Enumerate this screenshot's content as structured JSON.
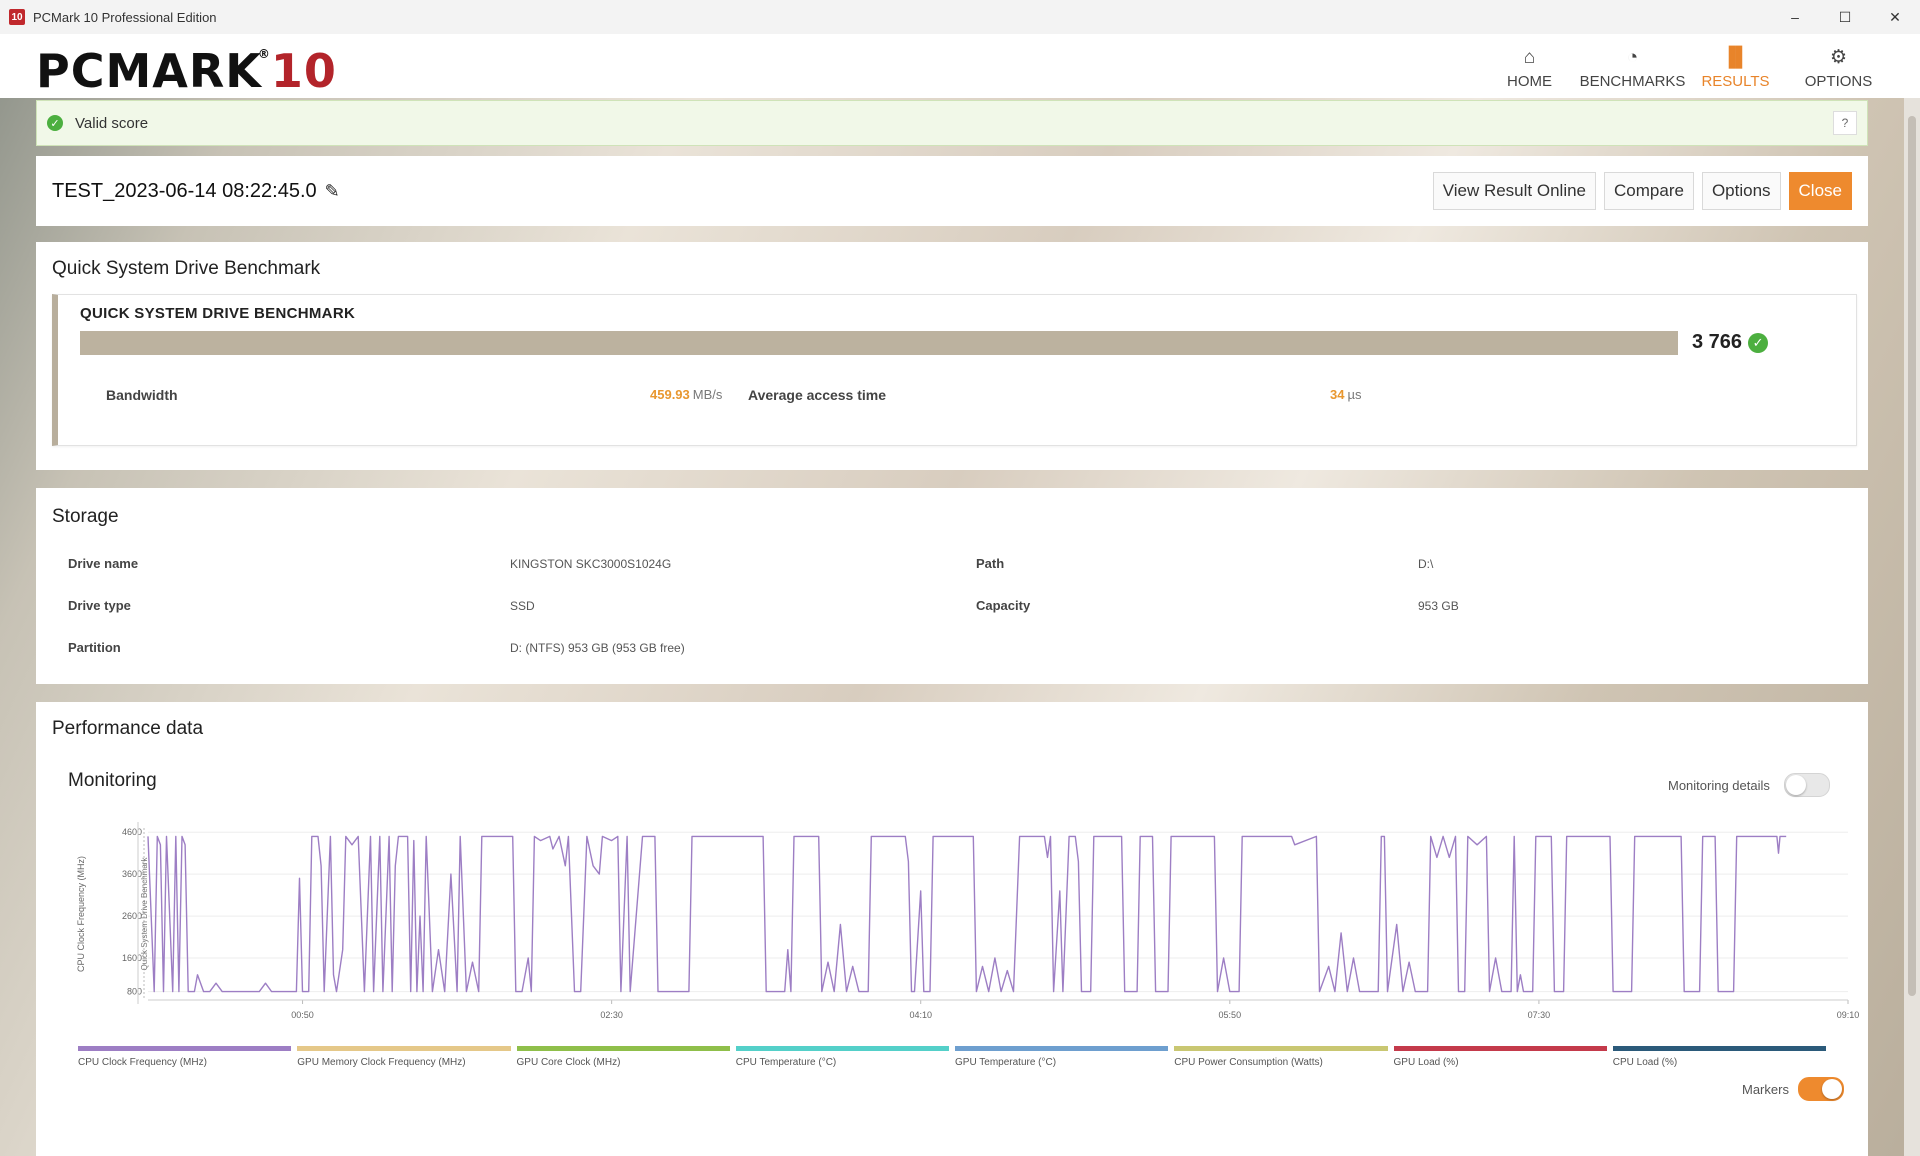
{
  "window": {
    "title": "PCMark 10 Professional Edition",
    "controls": [
      "–",
      "☐",
      "✕"
    ]
  },
  "logo": {
    "main": "PCMARK",
    "num": "10",
    "reg": "®"
  },
  "nav": [
    {
      "label": "HOME",
      "icon": "⌂",
      "icon_name": "home-icon",
      "active": false
    },
    {
      "label": "BENCHMARKS",
      "icon": "◔",
      "icon_name": "gauge-icon",
      "active": false
    },
    {
      "label": "RESULTS",
      "icon": "▐▌",
      "icon_name": "bar-chart-icon",
      "active": true
    },
    {
      "label": "OPTIONS",
      "icon": "⚙",
      "icon_name": "gear-icon",
      "active": false
    }
  ],
  "banner": {
    "text": "Valid score",
    "help": "?"
  },
  "result": {
    "title": "TEST_2023-06-14 08:22:45.0",
    "buttons": {
      "view_online": "View Result Online",
      "compare": "Compare",
      "options": "Options",
      "close": "Close"
    }
  },
  "benchmark": {
    "section_title": "Quick System Drive Benchmark",
    "name": "QUICK SYSTEM DRIVE BENCHMARK",
    "score": "3 766",
    "bandwidth_label": "Bandwidth",
    "bandwidth_value": "459.93",
    "bandwidth_unit": "MB/s",
    "access_label": "Average access time",
    "access_value": "34",
    "access_unit": "µs"
  },
  "storage": {
    "section_title": "Storage",
    "drive_name_label": "Drive name",
    "drive_name": "KINGSTON SKC3000S1024G",
    "path_label": "Path",
    "path": "D:\\",
    "drive_type_label": "Drive type",
    "drive_type": "SSD",
    "capacity_label": "Capacity",
    "capacity": "953 GB",
    "partition_label": "Partition",
    "partition": "D: (NTFS) 953 GB (953 GB free)"
  },
  "performance": {
    "section_title": "Performance data",
    "monitoring_title": "Monitoring",
    "monitoring_details_label": "Monitoring details",
    "monitoring_details_on": false,
    "markers_label": "Markers",
    "markers_on": true
  },
  "legend": [
    {
      "label": "CPU Clock Frequency (MHz)",
      "color": "#9d7ec4"
    },
    {
      "label": "GPU Memory Clock Frequency (MHz)",
      "color": "#e5c889"
    },
    {
      "label": "GPU Core Clock (MHz)",
      "color": "#8fbf4a"
    },
    {
      "label": "CPU Temperature (°C)",
      "color": "#54d0c9"
    },
    {
      "label": "GPU Temperature (°C)",
      "color": "#6e9fcf"
    },
    {
      "label": "CPU Power Consumption (Watts)",
      "color": "#c9c772"
    },
    {
      "label": "GPU Load (%)",
      "color": "#c43a4b"
    },
    {
      "label": "CPU Load (%)",
      "color": "#2b5a7a"
    }
  ],
  "chart_data": {
    "type": "line",
    "ylabel": "CPU Clock Frequency (MHz)",
    "marker_label": "Quick System Drive Benchmark",
    "y_ticks": [
      800,
      1600,
      2600,
      3600,
      4600
    ],
    "ylim": [
      600,
      4700
    ],
    "x_ticks": [
      "00:50",
      "02:30",
      "04:10",
      "05:50",
      "07:30",
      "09:10"
    ],
    "xlim": [
      0,
      550
    ],
    "grid": true,
    "series": [
      {
        "name": "CPU Clock Frequency (MHz)",
        "color": "#9d7ec4",
        "points": [
          [
            0,
            4500
          ],
          [
            2,
            800
          ],
          [
            3,
            4500
          ],
          [
            4,
            4300
          ],
          [
            5,
            800
          ],
          [
            6,
            4500
          ],
          [
            8,
            800
          ],
          [
            9,
            4500
          ],
          [
            10,
            800
          ],
          [
            11,
            4500
          ],
          [
            12,
            4300
          ],
          [
            13,
            800
          ],
          [
            15,
            800
          ],
          [
            16,
            1200
          ],
          [
            18,
            800
          ],
          [
            20,
            800
          ],
          [
            22,
            1000
          ],
          [
            24,
            800
          ],
          [
            30,
            800
          ],
          [
            36,
            800
          ],
          [
            38,
            1000
          ],
          [
            40,
            800
          ],
          [
            45,
            800
          ],
          [
            48,
            800
          ],
          [
            49,
            3500
          ],
          [
            50,
            800
          ],
          [
            52,
            800
          ],
          [
            53,
            4500
          ],
          [
            55,
            4500
          ],
          [
            56,
            3800
          ],
          [
            57,
            800
          ],
          [
            59,
            4500
          ],
          [
            60,
            1200
          ],
          [
            61,
            800
          ],
          [
            63,
            1800
          ],
          [
            64,
            4500
          ],
          [
            66,
            4300
          ],
          [
            68,
            4500
          ],
          [
            70,
            800
          ],
          [
            72,
            4500
          ],
          [
            73,
            800
          ],
          [
            75,
            4500
          ],
          [
            76,
            800
          ],
          [
            78,
            4500
          ],
          [
            79,
            800
          ],
          [
            80,
            3800
          ],
          [
            81,
            4500
          ],
          [
            84,
            4500
          ],
          [
            85,
            800
          ],
          [
            86,
            4400
          ],
          [
            87,
            800
          ],
          [
            88,
            2600
          ],
          [
            89,
            800
          ],
          [
            90,
            4500
          ],
          [
            92,
            800
          ],
          [
            94,
            1800
          ],
          [
            96,
            800
          ],
          [
            98,
            3600
          ],
          [
            100,
            800
          ],
          [
            101,
            4500
          ],
          [
            103,
            800
          ],
          [
            105,
            1500
          ],
          [
            107,
            800
          ],
          [
            108,
            4500
          ],
          [
            118,
            4500
          ],
          [
            119,
            800
          ],
          [
            121,
            800
          ],
          [
            123,
            1600
          ],
          [
            124,
            800
          ],
          [
            125,
            4500
          ],
          [
            127,
            4400
          ],
          [
            130,
            4500
          ],
          [
            131,
            4200
          ],
          [
            133,
            4500
          ],
          [
            135,
            3800
          ],
          [
            136,
            4500
          ],
          [
            138,
            800
          ],
          [
            140,
            800
          ],
          [
            142,
            4500
          ],
          [
            144,
            3800
          ],
          [
            146,
            3600
          ],
          [
            147,
            4500
          ],
          [
            150,
            4400
          ],
          [
            152,
            4500
          ],
          [
            153,
            800
          ],
          [
            155,
            4500
          ],
          [
            156,
            800
          ],
          [
            160,
            4500
          ],
          [
            164,
            4500
          ],
          [
            165,
            800
          ],
          [
            175,
            800
          ],
          [
            176,
            4500
          ],
          [
            199,
            4500
          ],
          [
            200,
            800
          ],
          [
            206,
            800
          ],
          [
            207,
            1800
          ],
          [
            208,
            800
          ],
          [
            209,
            4500
          ],
          [
            217,
            4500
          ],
          [
            218,
            800
          ],
          [
            220,
            1500
          ],
          [
            222,
            800
          ],
          [
            224,
            2400
          ],
          [
            226,
            800
          ],
          [
            228,
            1400
          ],
          [
            230,
            800
          ],
          [
            233,
            800
          ],
          [
            234,
            4500
          ],
          [
            245,
            4500
          ],
          [
            246,
            3900
          ],
          [
            247,
            800
          ],
          [
            248,
            800
          ],
          [
            250,
            3200
          ],
          [
            251,
            800
          ],
          [
            253,
            800
          ],
          [
            254,
            4500
          ],
          [
            267,
            4500
          ],
          [
            268,
            800
          ],
          [
            270,
            1400
          ],
          [
            272,
            800
          ],
          [
            274,
            1600
          ],
          [
            276,
            800
          ],
          [
            278,
            1300
          ],
          [
            280,
            800
          ],
          [
            282,
            4500
          ],
          [
            290,
            4500
          ],
          [
            291,
            4000
          ],
          [
            292,
            4500
          ],
          [
            293,
            800
          ],
          [
            295,
            3200
          ],
          [
            296,
            800
          ],
          [
            298,
            4500
          ],
          [
            300,
            4500
          ],
          [
            301,
            3900
          ],
          [
            302,
            800
          ],
          [
            305,
            800
          ],
          [
            306,
            4500
          ],
          [
            315,
            4500
          ],
          [
            316,
            800
          ],
          [
            320,
            800
          ],
          [
            321,
            4500
          ],
          [
            325,
            4500
          ],
          [
            326,
            800
          ],
          [
            330,
            800
          ],
          [
            331,
            4500
          ],
          [
            345,
            4500
          ],
          [
            346,
            800
          ],
          [
            348,
            1600
          ],
          [
            350,
            800
          ],
          [
            353,
            800
          ],
          [
            354,
            4500
          ],
          [
            370,
            4500
          ],
          [
            371,
            4300
          ],
          [
            378,
            4500
          ],
          [
            379,
            800
          ],
          [
            382,
            1400
          ],
          [
            384,
            800
          ],
          [
            386,
            2200
          ],
          [
            388,
            800
          ],
          [
            390,
            1600
          ],
          [
            392,
            800
          ],
          [
            398,
            800
          ],
          [
            399,
            4500
          ],
          [
            400,
            4500
          ],
          [
            401,
            800
          ],
          [
            404,
            2400
          ],
          [
            406,
            800
          ],
          [
            408,
            1500
          ],
          [
            410,
            800
          ],
          [
            414,
            800
          ],
          [
            415,
            4500
          ],
          [
            417,
            4000
          ],
          [
            419,
            4500
          ],
          [
            421,
            4000
          ],
          [
            423,
            4500
          ],
          [
            424,
            800
          ],
          [
            426,
            800
          ],
          [
            427,
            4500
          ],
          [
            430,
            4300
          ],
          [
            433,
            4500
          ],
          [
            434,
            800
          ],
          [
            436,
            1600
          ],
          [
            438,
            800
          ],
          [
            441,
            800
          ],
          [
            442,
            4500
          ],
          [
            443,
            800
          ],
          [
            444,
            1200
          ],
          [
            445,
            800
          ],
          [
            448,
            800
          ],
          [
            449,
            4500
          ],
          [
            454,
            4500
          ],
          [
            455,
            800
          ],
          [
            458,
            800
          ],
          [
            459,
            4500
          ],
          [
            473,
            4500
          ],
          [
            474,
            800
          ],
          [
            480,
            800
          ],
          [
            481,
            4500
          ],
          [
            496,
            4500
          ],
          [
            497,
            800
          ],
          [
            502,
            800
          ],
          [
            503,
            4500
          ],
          [
            507,
            4500
          ],
          [
            508,
            800
          ],
          [
            513,
            800
          ],
          [
            514,
            4500
          ],
          [
            527,
            4500
          ],
          [
            527.5,
            4100
          ],
          [
            528,
            4500
          ],
          [
            530,
            4500
          ]
        ]
      }
    ]
  }
}
